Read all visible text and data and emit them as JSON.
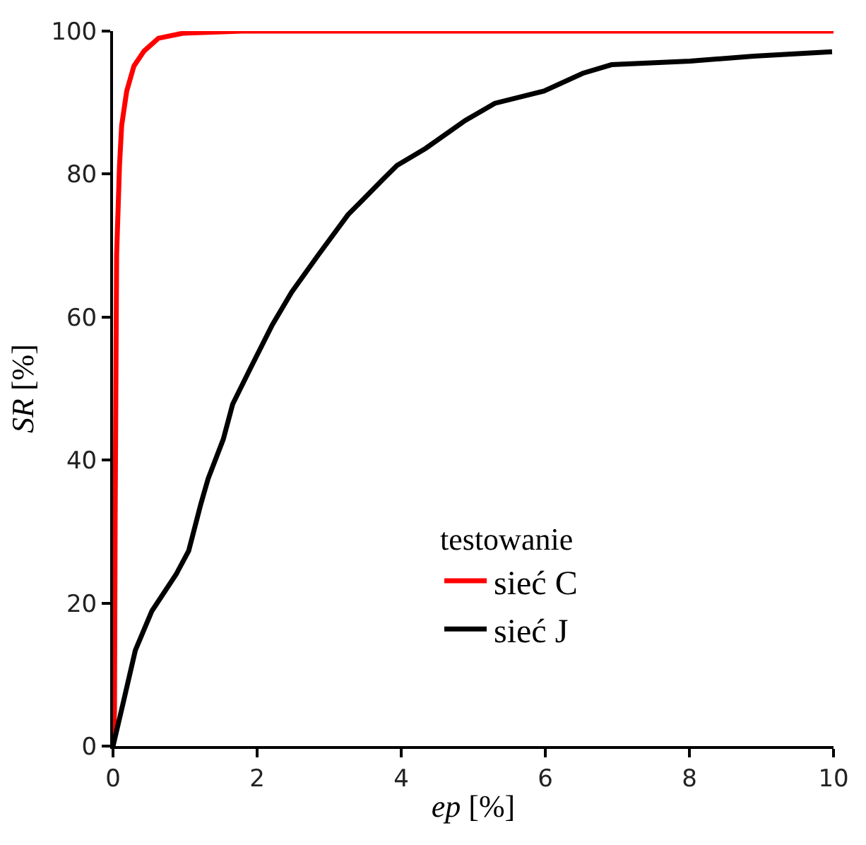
{
  "chart_data": {
    "type": "line",
    "xlabel": "ep [%]",
    "ylabel": "SR [%]",
    "legend_title": "testowanie",
    "xlim": [
      0,
      10
    ],
    "xticks": [
      0,
      2,
      4,
      6,
      8,
      10
    ],
    "ylim": [
      0,
      100
    ],
    "yticks": [
      0,
      20,
      40,
      60,
      80,
      100
    ],
    "legend": "bottom right",
    "marker": "none",
    "line_style": "solid",
    "series": [
      {
        "name": "sieć C",
        "color": "#ff0000",
        "x": [
          0,
          0.02,
          0.03,
          0.05,
          0.09,
          0.12,
          0.19,
          0.29,
          0.43,
          0.63,
          0.97,
          1.79,
          10
        ],
        "values": [
          0,
          4.7,
          32.5,
          68.7,
          81.2,
          86.8,
          91.6,
          95.1,
          97.2,
          99,
          99.7,
          100,
          100
        ]
      },
      {
        "name": "sieć J",
        "color": "#000000",
        "x": [
          0,
          0.14,
          0.31,
          0.54,
          0.88,
          1.05,
          1.22,
          1.32,
          1.53,
          1.66,
          1.9,
          2.21,
          2.48,
          2.85,
          3.26,
          3.73,
          3.94,
          4.34,
          4.89,
          5.3,
          5.98,
          6.52,
          6.92,
          8.01,
          8.89,
          9.98
        ],
        "values": [
          0,
          6,
          13.4,
          18.9,
          24.1,
          27.3,
          33.9,
          37.4,
          42.9,
          47.8,
          52.7,
          58.9,
          63.5,
          68.7,
          74.3,
          79.1,
          81.2,
          83.6,
          87.5,
          89.9,
          91.6,
          94.1,
          95.3,
          95.8,
          96.5,
          97.1
        ]
      }
    ]
  }
}
